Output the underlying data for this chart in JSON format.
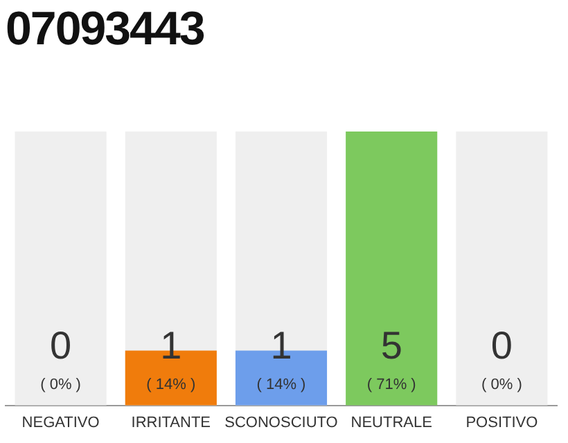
{
  "chart_data": {
    "type": "bar",
    "title": "07093443",
    "categories": [
      "NEGATIVO",
      "IRRITANTE",
      "SCONOSCIUTO",
      "NEUTRALE",
      "POSITIVO"
    ],
    "values": [
      0,
      1,
      1,
      5,
      0
    ],
    "colors": [
      "#999999",
      "#f07c0c",
      "#6d9eeb",
      "#7dc95e",
      "#999999"
    ],
    "ylim": [
      0,
      5
    ],
    "tick_labels": "x",
    "grid": false,
    "legend": false,
    "data_labels": true,
    "bands": [
      {
        "axis": "x",
        "from": "NEGATIVO",
        "to": "NEGATIVO",
        "color": "#efefef"
      },
      {
        "axis": "x",
        "from": "IRRITANTE",
        "to": "IRRITANTE",
        "color": "#efefef"
      },
      {
        "axis": "x",
        "from": "SCONOSCIUTO",
        "to": "SCONOSCIUTO",
        "color": "#efefef"
      },
      {
        "axis": "x",
        "from": "POSITIVO",
        "to": "POSITIVO",
        "color": "#efefef"
      }
    ],
    "annotations": [
      "( 0% )",
      "( 14% )",
      "( 14% )",
      "( 71% )",
      "( 0% )"
    ]
  }
}
